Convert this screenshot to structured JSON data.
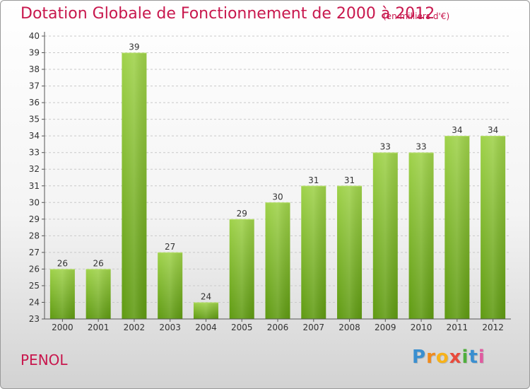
{
  "header": {
    "title": "Dotation Globale de Fonctionnement de 2000 à 2012",
    "subtitle": "(en milliers d'€)"
  },
  "commune": "PENOL",
  "brand": {
    "logo_text": "Proxiti",
    "letter_colors": [
      "#3a8fd0",
      "#f08a1c",
      "#f7b21a",
      "#e84a3c",
      "#4fae3c",
      "#3a8fd0",
      "#e05aa0"
    ]
  },
  "colors": {
    "title": "#c8174d",
    "bar_top": "#9fd24a",
    "bar_bottom": "#5f9a12",
    "axis": "#555555"
  },
  "chart_data": {
    "type": "bar",
    "title": "Dotation Globale de Fonctionnement de 2000 à 2012",
    "subtitle": "(en milliers d'€)",
    "categories": [
      "2000",
      "2001",
      "2002",
      "2003",
      "2004",
      "2005",
      "2006",
      "2007",
      "2008",
      "2009",
      "2010",
      "2011",
      "2012"
    ],
    "values": [
      26,
      26,
      39,
      27,
      24,
      29,
      30,
      31,
      31,
      33,
      33,
      34,
      34
    ],
    "xlabel": "",
    "ylabel": "",
    "ylim": [
      23,
      40
    ],
    "yticks": [
      23,
      24,
      25,
      26,
      27,
      28,
      29,
      30,
      31,
      32,
      33,
      34,
      35,
      36,
      37,
      38,
      39,
      40
    ],
    "grid": true,
    "legend": "none"
  }
}
